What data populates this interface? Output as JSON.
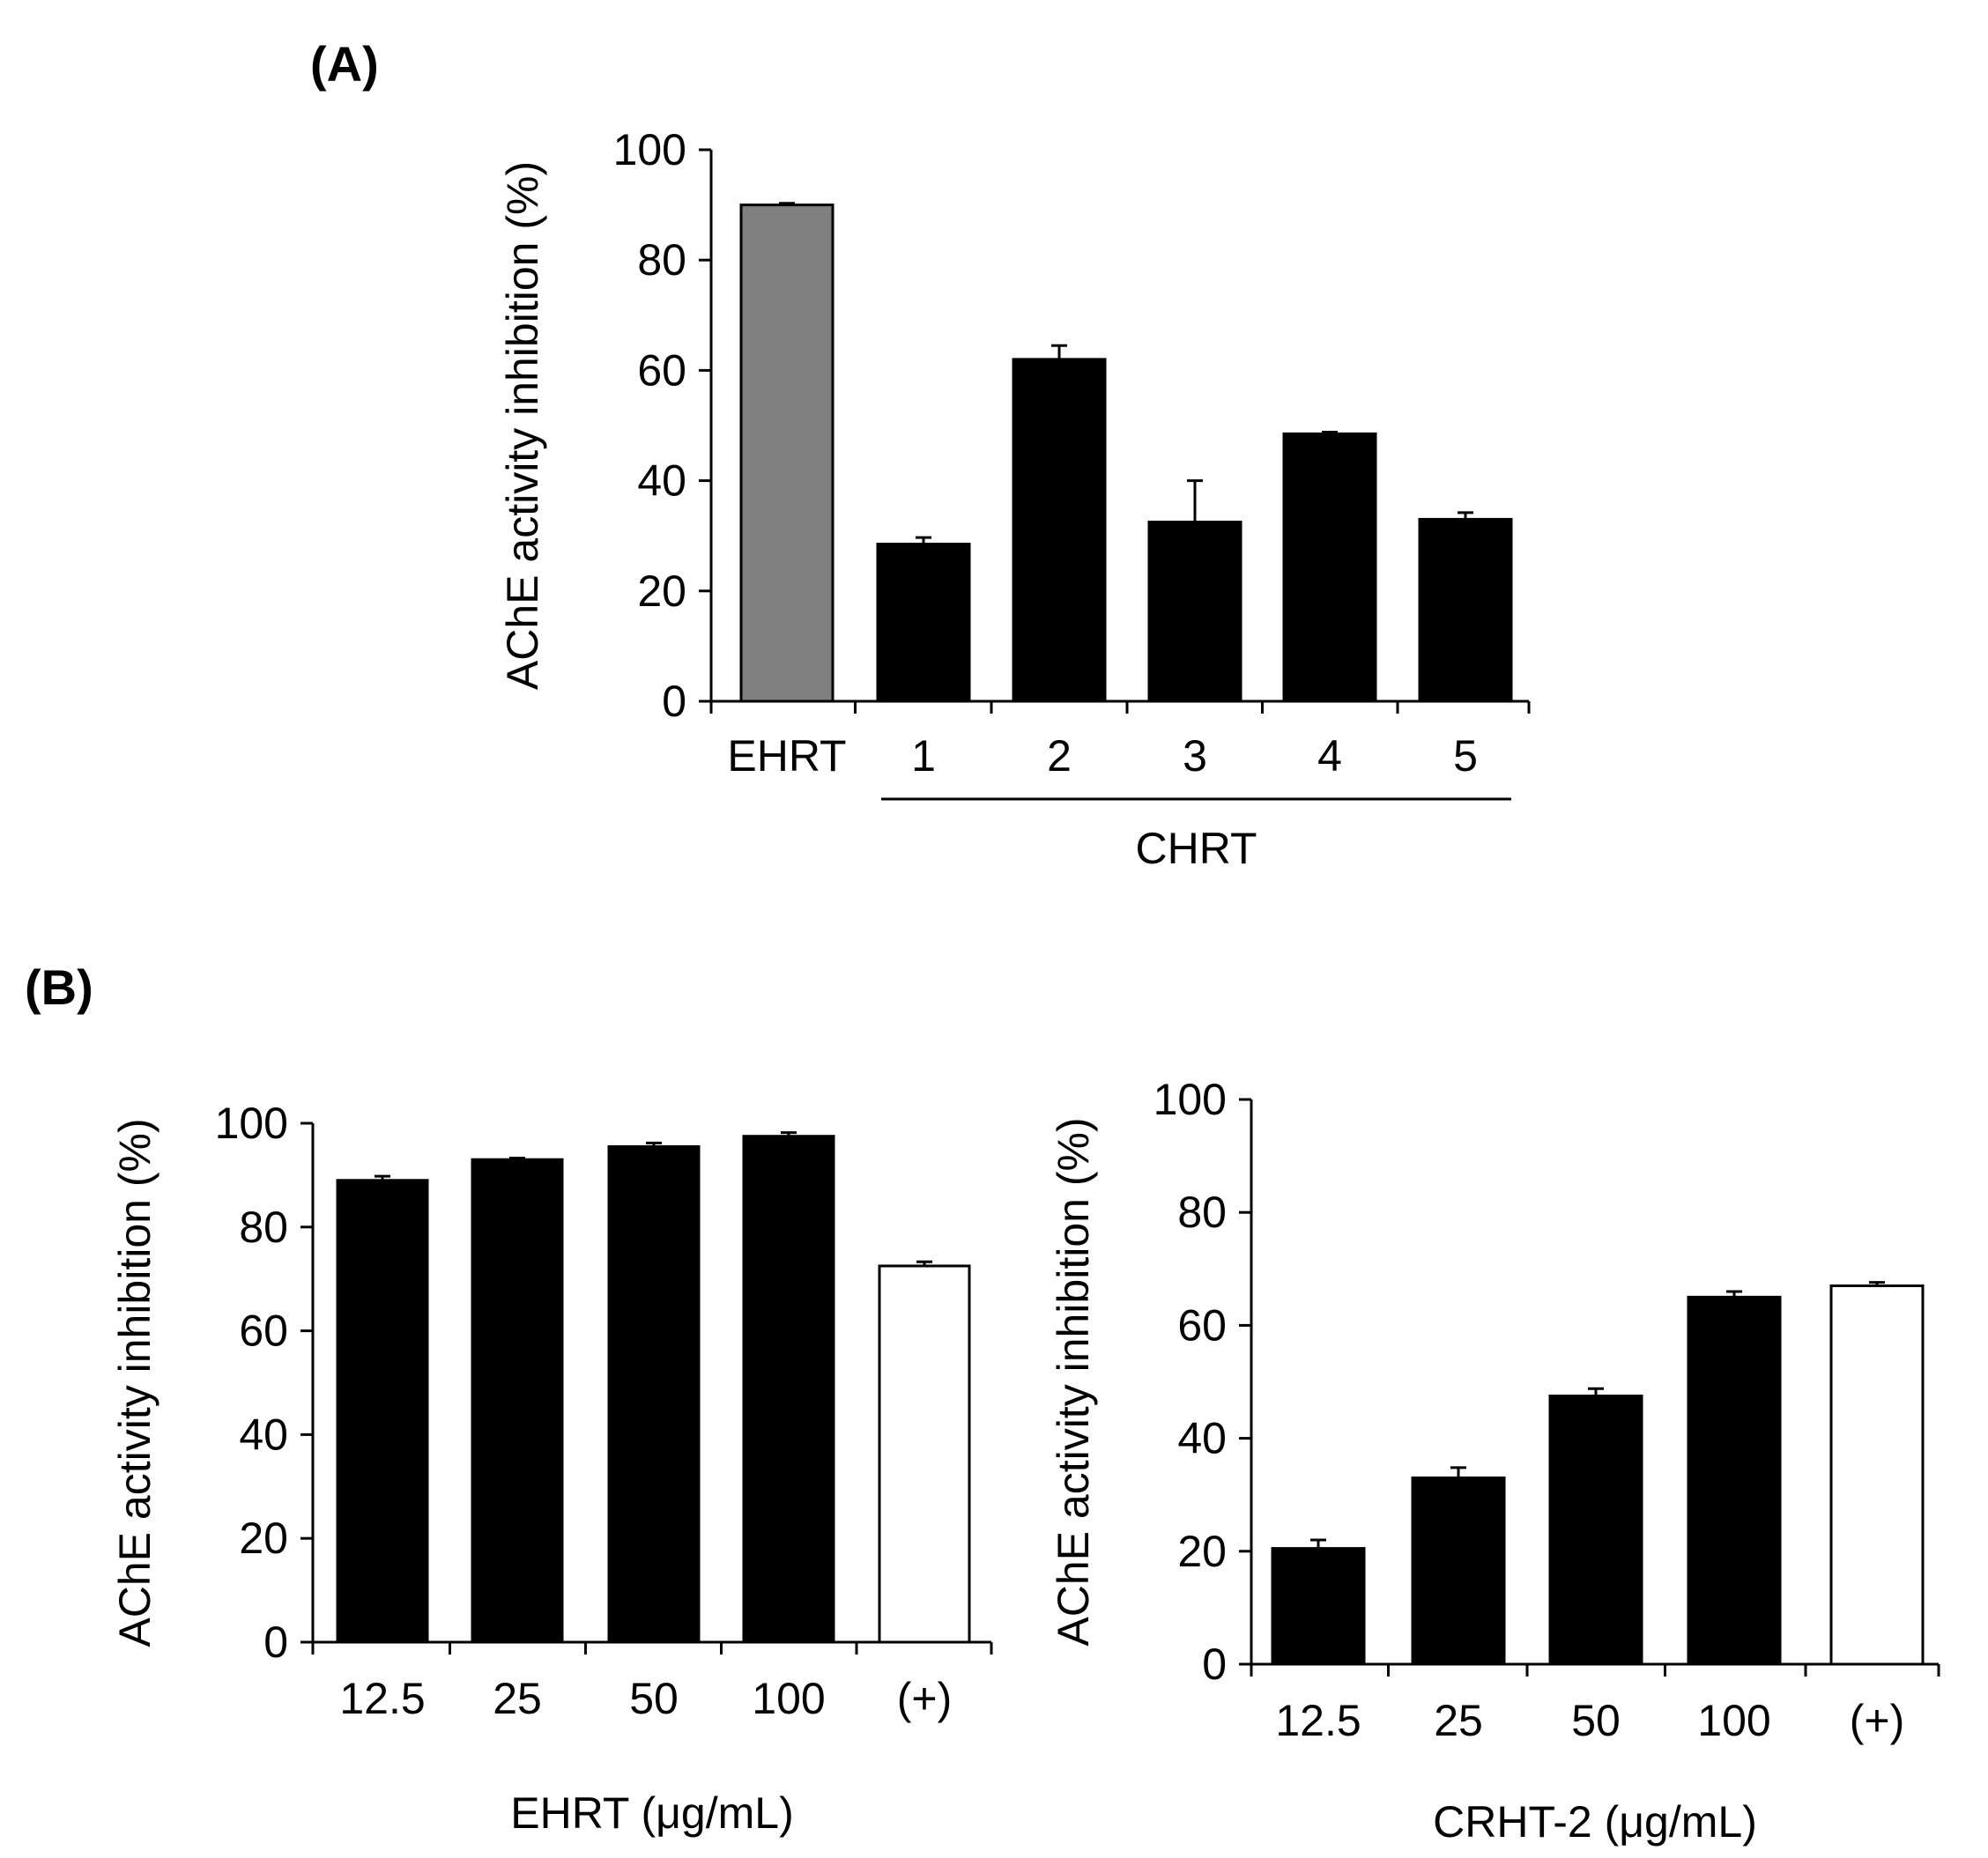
{
  "panel_labels": {
    "a": "(A)",
    "b": "(B)"
  },
  "chart_data": [
    {
      "id": "A",
      "type": "bar",
      "title": "",
      "ylabel": "AChE activity inhibition (%)",
      "xlabel": "",
      "group_label": "CHRT",
      "ylim": [
        0,
        100
      ],
      "yticks": [
        0,
        20,
        40,
        60,
        80,
        100
      ],
      "categories": [
        "EHRT",
        "1",
        "2",
        "3",
        "4",
        "5"
      ],
      "values": [
        90,
        28.5,
        62,
        32.5,
        48.5,
        33
      ],
      "errors": [
        0.3,
        1.2,
        2.5,
        7.5,
        0.3,
        1.2
      ],
      "fill_colors": [
        "#808080",
        "#000000",
        "#000000",
        "#000000",
        "#000000",
        "#000000"
      ]
    },
    {
      "id": "B1",
      "type": "bar",
      "title": "",
      "ylabel": "AChE activity inhibition (%)",
      "xlabel": "EHRT (μg/mL)",
      "ylim": [
        0,
        100
      ],
      "yticks": [
        0,
        20,
        40,
        60,
        80,
        100
      ],
      "categories": [
        "12.5",
        "25",
        "50",
        "100",
        "(+)"
      ],
      "values": [
        89,
        93,
        95.5,
        97.5,
        72.5
      ],
      "errors": [
        0.8,
        0.3,
        0.7,
        0.7,
        0.8
      ],
      "fill_colors": [
        "#000000",
        "#000000",
        "#000000",
        "#000000",
        "#ffffff"
      ]
    },
    {
      "id": "B2",
      "type": "bar",
      "title": "",
      "ylabel": "AChE activity inhibition (%)",
      "xlabel": "CRHT-2 (μg/mL)",
      "ylim": [
        0,
        100
      ],
      "yticks": [
        0,
        20,
        40,
        60,
        80,
        100
      ],
      "categories": [
        "12.5",
        "25",
        "50",
        "100",
        "(+)"
      ],
      "values": [
        20.5,
        33,
        47.5,
        65,
        67
      ],
      "errors": [
        1.5,
        1.8,
        1.3,
        1.0,
        0.6
      ],
      "fill_colors": [
        "#000000",
        "#000000",
        "#000000",
        "#000000",
        "#ffffff"
      ]
    }
  ]
}
